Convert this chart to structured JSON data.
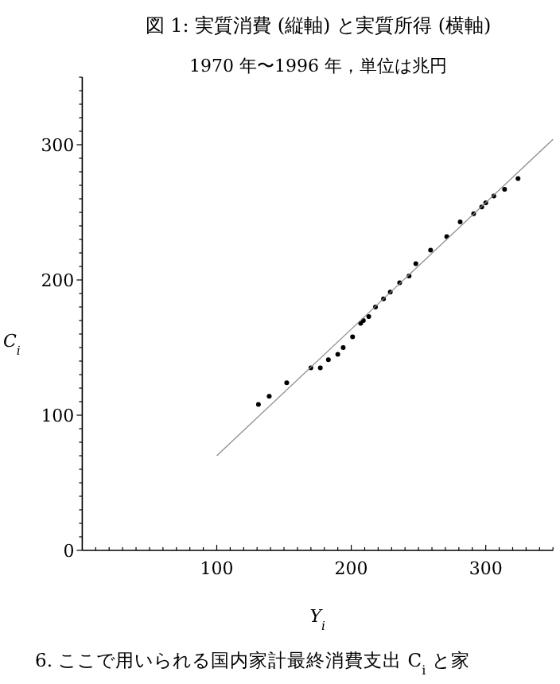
{
  "chart_data": {
    "type": "scatter",
    "title": "図 1: 実質消費 (縦軸) と実質所得 (横軸)",
    "subtitle": "1970 年〜1996 年，単位は兆円",
    "xlabel": "Y$_{i}$",
    "ylabel": "C$_{i}$",
    "annotations": [
      "6. ここで用いられる国内家計最終消費支出 C$_{i}$ と家"
    ],
    "xlim": [
      0,
      350
    ],
    "ylim": [
      0,
      350
    ],
    "xticks": [
      {
        "value": 10,
        "label": null
      },
      {
        "value": 20,
        "label": null
      },
      {
        "value": 30,
        "label": null
      },
      {
        "value": 40,
        "label": null
      },
      {
        "value": 50,
        "label": null
      },
      {
        "value": 60,
        "label": null
      },
      {
        "value": 70,
        "label": null
      },
      {
        "value": 80,
        "label": null
      },
      {
        "value": 90,
        "label": null
      },
      100,
      {
        "value": 110,
        "label": null
      },
      {
        "value": 120,
        "label": null
      },
      {
        "value": 130,
        "label": null
      },
      {
        "value": 140,
        "label": null
      },
      {
        "value": 150,
        "label": null
      },
      {
        "value": 160,
        "label": null
      },
      {
        "value": 170,
        "label": null
      },
      {
        "value": 180,
        "label": null
      },
      {
        "value": 190,
        "label": null
      },
      200,
      {
        "value": 210,
        "label": null
      },
      {
        "value": 220,
        "label": null
      },
      {
        "value": 230,
        "label": null
      },
      {
        "value": 240,
        "label": null
      },
      {
        "value": 250,
        "label": null
      },
      {
        "value": 260,
        "label": null
      },
      {
        "value": 270,
        "label": null
      },
      {
        "value": 280,
        "label": null
      },
      {
        "value": 290,
        "label": null
      },
      300,
      {
        "value": 310,
        "label": null
      },
      {
        "value": 320,
        "label": null
      },
      {
        "value": 330,
        "label": null
      },
      {
        "value": 340,
        "label": null
      },
      {
        "value": 350,
        "label": null
      }
    ],
    "yticks": [
      0,
      {
        "value": 10,
        "label": null
      },
      {
        "value": 20,
        "label": null
      },
      {
        "value": 30,
        "label": null
      },
      {
        "value": 40,
        "label": null
      },
      {
        "value": 50,
        "label": null
      },
      {
        "value": 60,
        "label": null
      },
      {
        "value": 70,
        "label": null
      },
      {
        "value": 80,
        "label": null
      },
      {
        "value": 90,
        "label": null
      },
      100,
      {
        "value": 110,
        "label": null
      },
      {
        "value": 120,
        "label": null
      },
      {
        "value": 130,
        "label": null
      },
      {
        "value": 140,
        "label": null
      },
      {
        "value": 150,
        "label": null
      },
      {
        "value": 160,
        "label": null
      },
      {
        "value": 170,
        "label": null
      },
      {
        "value": 180,
        "label": null
      },
      {
        "value": 190,
        "label": null
      },
      200,
      {
        "value": 210,
        "label": null
      },
      {
        "value": 220,
        "label": null
      },
      {
        "value": 230,
        "label": null
      },
      {
        "value": 240,
        "label": null
      },
      {
        "value": 250,
        "label": null
      },
      {
        "value": 260,
        "label": null
      },
      {
        "value": 270,
        "label": null
      },
      {
        "value": 280,
        "label": null
      },
      {
        "value": 290,
        "label": null
      },
      300,
      {
        "value": 310,
        "label": null
      },
      {
        "value": 320,
        "label": null
      },
      {
        "value": 330,
        "label": null
      },
      {
        "value": 340,
        "label": null
      },
      {
        "value": 350,
        "label": null
      }
    ],
    "series": [
      {
        "color": "#000000",
        "marker": "circle",
        "x": [
          131,
          139,
          152,
          170,
          177,
          183,
          190,
          194,
          201,
          207,
          209,
          213,
          218,
          224,
          229,
          236,
          243,
          248,
          259,
          271,
          281,
          291,
          297,
          300,
          306,
          314,
          324
        ],
        "values": [
          108,
          114,
          124,
          135,
          135,
          141,
          145,
          150,
          158,
          168,
          170,
          173,
          180,
          186,
          191,
          198,
          203,
          212,
          222,
          232,
          243,
          249,
          254,
          257,
          262,
          267,
          275
        ]
      },
      {
        "type": "line",
        "color": "#888888",
        "marker": "none",
        "x": [
          100,
          350
        ],
        "values": [
          70,
          304
        ]
      }
    ]
  }
}
